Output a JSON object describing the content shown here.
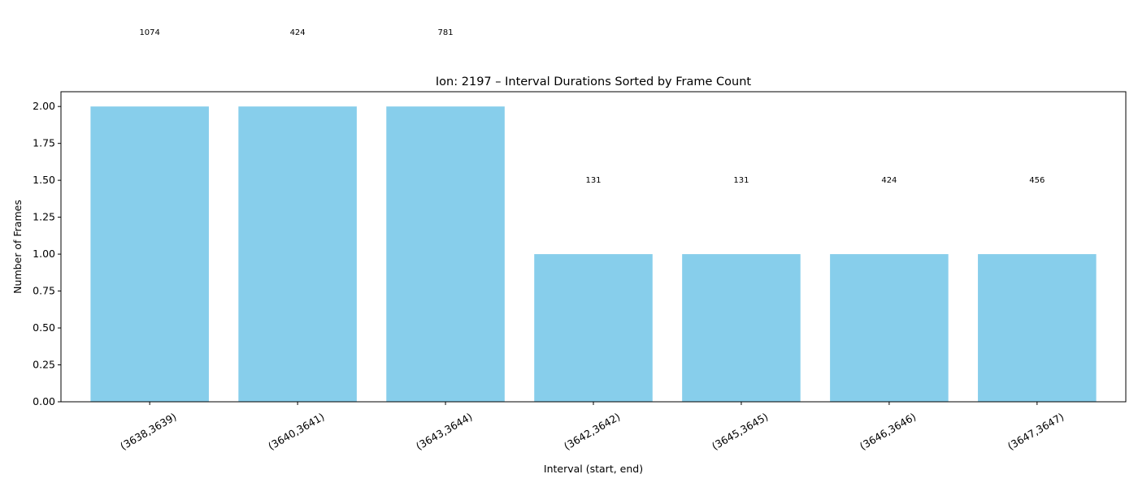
{
  "chart_data": {
    "type": "bar",
    "title": "Ion: 2197 – Interval Durations Sorted by Frame Count",
    "xlabel": "Interval (start, end)",
    "ylabel": "Number of Frames",
    "ylim": [
      0,
      2.1
    ],
    "yticks": [
      "0.00",
      "0.25",
      "0.50",
      "0.75",
      "1.00",
      "1.25",
      "1.50",
      "1.75",
      "2.00"
    ],
    "grid": false,
    "legend": false,
    "categories": [
      "(3638,3639)",
      "(3640,3641)",
      "(3643,3644)",
      "(3642,3642)",
      "(3645,3645)",
      "(3646,3646)",
      "(3647,3647)"
    ],
    "values": [
      2,
      2,
      2,
      1,
      1,
      1,
      1
    ],
    "bar_labels": [
      "1074",
      "424",
      "781",
      "131",
      "131",
      "424",
      "456"
    ],
    "bar_color": "#87ceeb"
  }
}
